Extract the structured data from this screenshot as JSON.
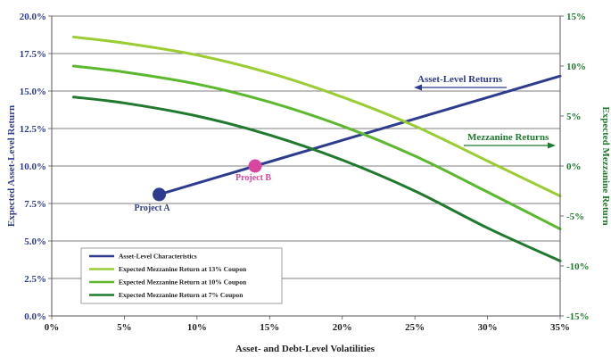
{
  "chart_data": {
    "type": "line",
    "xlabel": "Asset- and Debt-Level Volatilities",
    "ylabel_left": "Expected Asset-Level Return",
    "ylabel_right": "Expected Mezzanine Return",
    "x_ticks": [
      "0%",
      "5%",
      "10%",
      "15%",
      "20%",
      "25%",
      "30%",
      "35%"
    ],
    "y_left_ticks": [
      "0.0%",
      "2.5%",
      "5.0%",
      "7.5%",
      "10.0%",
      "12.5%",
      "15.0%",
      "17.5%",
      "20.0%"
    ],
    "y_right_ticks": [
      "-15%",
      "-10%",
      "-5%",
      "0%",
      "5%",
      "10%",
      "15%"
    ],
    "xlim": [
      0,
      0.35
    ],
    "ylim_left": [
      0,
      0.2
    ],
    "ylim_right": [
      -0.15,
      0.15
    ],
    "grid": "horizontal",
    "legend_position": "bottom-left",
    "series": [
      {
        "name": "Asset-Level Characteristics",
        "axis": "left",
        "color": "#2e3c8f",
        "x": [
          0.074,
          0.14,
          0.35
        ],
        "y": [
          0.081,
          0.1,
          0.16
        ]
      },
      {
        "name": "Expected Mezzanine Return at 13% Coupon",
        "axis": "right",
        "color": "#9acd32",
        "x": [
          0.015,
          0.05,
          0.1,
          0.15,
          0.2,
          0.25,
          0.3,
          0.35
        ],
        "y": [
          0.129,
          0.123,
          0.111,
          0.093,
          0.069,
          0.04,
          0.005,
          -0.03
        ]
      },
      {
        "name": "Expected Mezzanine Return at 10% Coupon",
        "axis": "right",
        "color": "#5cb82e",
        "x": [
          0.015,
          0.05,
          0.1,
          0.15,
          0.2,
          0.25,
          0.3,
          0.35
        ],
        "y": [
          0.1,
          0.094,
          0.082,
          0.064,
          0.04,
          0.01,
          -0.026,
          -0.063
        ]
      },
      {
        "name": "Expected Mezzanine Return at 7% Coupon",
        "axis": "right",
        "color": "#1f7a2e",
        "x": [
          0.015,
          0.05,
          0.1,
          0.15,
          0.2,
          0.25,
          0.3,
          0.35
        ],
        "y": [
          0.069,
          0.063,
          0.05,
          0.031,
          0.006,
          -0.025,
          -0.062,
          -0.095
        ]
      }
    ],
    "points": [
      {
        "label": "Project A",
        "x": 0.074,
        "y": 0.081,
        "color": "#2e3c8f"
      },
      {
        "label": "Project B",
        "x": 0.14,
        "y": 0.1,
        "color": "#d9469f"
      }
    ],
    "annotations": [
      {
        "text": "Asset-Level Returns",
        "color": "#2e3c8f",
        "arrow": "left"
      },
      {
        "text": "Mezzanine Returns",
        "color": "#1f7a2e",
        "arrow": "right"
      }
    ]
  }
}
